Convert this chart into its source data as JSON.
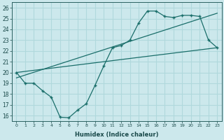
{
  "xlabel": "Humidex (Indice chaleur)",
  "ylabel": "",
  "xlim": [
    -0.5,
    23.5
  ],
  "ylim": [
    15.5,
    26.5
  ],
  "xticks": [
    0,
    1,
    2,
    3,
    4,
    5,
    6,
    7,
    8,
    9,
    10,
    11,
    12,
    13,
    14,
    15,
    16,
    17,
    18,
    19,
    20,
    21,
    22,
    23
  ],
  "yticks": [
    16,
    17,
    18,
    19,
    20,
    21,
    22,
    23,
    24,
    25,
    26
  ],
  "bg_color": "#cce8ec",
  "line_color": "#1a6e6a",
  "grid_color": "#b0d8dc",
  "line1_x": [
    0,
    1,
    2,
    3,
    4,
    5,
    6,
    7,
    8,
    9,
    10,
    11,
    12,
    13,
    14,
    15,
    16,
    17,
    18,
    19,
    20,
    21,
    22,
    23
  ],
  "line1_y": [
    20.0,
    19.0,
    19.0,
    18.3,
    17.7,
    15.85,
    15.8,
    16.5,
    17.1,
    18.8,
    20.6,
    22.3,
    22.5,
    23.0,
    24.6,
    25.7,
    25.7,
    25.2,
    25.1,
    25.3,
    25.3,
    25.2,
    23.0,
    22.3
  ],
  "line2_x": [
    0,
    23
  ],
  "line2_y": [
    20.0,
    22.3
  ],
  "line3_x": [
    0,
    23
  ],
  "line3_y": [
    19.5,
    25.5
  ]
}
